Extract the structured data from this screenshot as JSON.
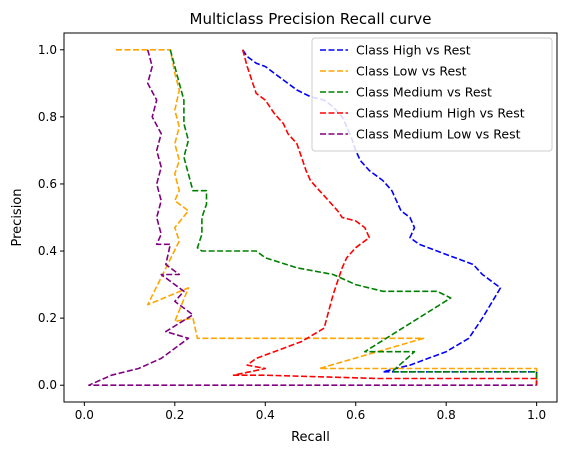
{
  "chart_data": {
    "type": "line",
    "title": "Multiclass Precision Recall curve",
    "xlabel": "Recall",
    "ylabel": "Precision",
    "xlim": [
      -0.045,
      1.045
    ],
    "ylim": [
      -0.05,
      1.05
    ],
    "xticks": [
      "0.0",
      "0.2",
      "0.4",
      "0.6",
      "0.8",
      "1.0"
    ],
    "yticks": [
      "0.0",
      "0.2",
      "0.4",
      "0.6",
      "0.8",
      "1.0"
    ],
    "xtick_values": [
      0,
      0.2,
      0.4,
      0.6,
      0.8,
      1.0
    ],
    "ytick_values": [
      0,
      0.2,
      0.4,
      0.6,
      0.8,
      1.0
    ],
    "legend_position": "top-right",
    "grid": false,
    "series": [
      {
        "name": "Class High vs Rest",
        "color": "#0000ff",
        "points": [
          [
            0.35,
            1.0
          ],
          [
            0.36,
            0.98
          ],
          [
            0.38,
            0.96
          ],
          [
            0.4,
            0.95
          ],
          [
            0.42,
            0.93
          ],
          [
            0.44,
            0.91
          ],
          [
            0.47,
            0.88
          ],
          [
            0.5,
            0.86
          ],
          [
            0.53,
            0.85
          ],
          [
            0.55,
            0.83
          ],
          [
            0.57,
            0.8
          ],
          [
            0.58,
            0.77
          ],
          [
            0.59,
            0.74
          ],
          [
            0.6,
            0.7
          ],
          [
            0.61,
            0.67
          ],
          [
            0.63,
            0.64
          ],
          [
            0.66,
            0.61
          ],
          [
            0.68,
            0.58
          ],
          [
            0.69,
            0.55
          ],
          [
            0.7,
            0.52
          ],
          [
            0.72,
            0.5
          ],
          [
            0.73,
            0.47
          ],
          [
            0.72,
            0.44
          ],
          [
            0.74,
            0.42
          ],
          [
            0.78,
            0.4
          ],
          [
            0.82,
            0.38
          ],
          [
            0.86,
            0.36
          ],
          [
            0.88,
            0.33
          ],
          [
            0.9,
            0.31
          ],
          [
            0.92,
            0.29
          ],
          [
            0.88,
            0.2
          ],
          [
            0.85,
            0.14
          ],
          [
            0.8,
            0.1
          ],
          [
            0.72,
            0.06
          ],
          [
            0.66,
            0.04
          ],
          [
            1.0,
            0.04
          ],
          [
            1.0,
            0.0
          ]
        ]
      },
      {
        "name": "Class Low vs Rest",
        "color": "#ffa500",
        "points": [
          [
            0.07,
            1.0
          ],
          [
            0.19,
            1.0
          ],
          [
            0.2,
            0.93
          ],
          [
            0.21,
            0.88
          ],
          [
            0.2,
            0.82
          ],
          [
            0.21,
            0.77
          ],
          [
            0.2,
            0.72
          ],
          [
            0.21,
            0.67
          ],
          [
            0.2,
            0.63
          ],
          [
            0.21,
            0.58
          ],
          [
            0.2,
            0.55
          ],
          [
            0.23,
            0.52
          ],
          [
            0.2,
            0.47
          ],
          [
            0.21,
            0.43
          ],
          [
            0.14,
            0.24
          ],
          [
            0.23,
            0.29
          ],
          [
            0.2,
            0.19
          ],
          [
            0.24,
            0.2
          ],
          [
            0.25,
            0.14
          ],
          [
            0.75,
            0.14
          ],
          [
            0.52,
            0.05
          ],
          [
            1.0,
            0.05
          ],
          [
            1.0,
            0.0
          ]
        ]
      },
      {
        "name": "Class Medium vs Rest",
        "color": "#008000",
        "points": [
          [
            0.19,
            1.0
          ],
          [
            0.2,
            0.95
          ],
          [
            0.21,
            0.9
          ],
          [
            0.22,
            0.85
          ],
          [
            0.22,
            0.78
          ],
          [
            0.23,
            0.73
          ],
          [
            0.22,
            0.68
          ],
          [
            0.23,
            0.63
          ],
          [
            0.24,
            0.58
          ],
          [
            0.27,
            0.58
          ],
          [
            0.27,
            0.54
          ],
          [
            0.26,
            0.5
          ],
          [
            0.26,
            0.45
          ],
          [
            0.25,
            0.41
          ],
          [
            0.26,
            0.4
          ],
          [
            0.38,
            0.4
          ],
          [
            0.4,
            0.38
          ],
          [
            0.47,
            0.35
          ],
          [
            0.55,
            0.33
          ],
          [
            0.6,
            0.3
          ],
          [
            0.66,
            0.28
          ],
          [
            0.78,
            0.28
          ],
          [
            0.81,
            0.26
          ],
          [
            0.62,
            0.1
          ],
          [
            0.73,
            0.1
          ],
          [
            0.68,
            0.04
          ],
          [
            1.0,
            0.04
          ],
          [
            1.0,
            0.0
          ]
        ]
      },
      {
        "name": "Class Medium High vs Rest",
        "color": "#ff0000",
        "points": [
          [
            0.35,
            1.0
          ],
          [
            0.36,
            0.95
          ],
          [
            0.37,
            0.91
          ],
          [
            0.38,
            0.87
          ],
          [
            0.4,
            0.85
          ],
          [
            0.42,
            0.81
          ],
          [
            0.44,
            0.78
          ],
          [
            0.45,
            0.75
          ],
          [
            0.47,
            0.72
          ],
          [
            0.48,
            0.68
          ],
          [
            0.49,
            0.64
          ],
          [
            0.5,
            0.61
          ],
          [
            0.52,
            0.58
          ],
          [
            0.54,
            0.55
          ],
          [
            0.56,
            0.52
          ],
          [
            0.57,
            0.5
          ],
          [
            0.6,
            0.49
          ],
          [
            0.62,
            0.47
          ],
          [
            0.63,
            0.44
          ],
          [
            0.6,
            0.41
          ],
          [
            0.58,
            0.38
          ],
          [
            0.57,
            0.35
          ],
          [
            0.56,
            0.31
          ],
          [
            0.55,
            0.27
          ],
          [
            0.54,
            0.22
          ],
          [
            0.53,
            0.17
          ],
          [
            0.48,
            0.13
          ],
          [
            0.42,
            0.1
          ],
          [
            0.38,
            0.08
          ],
          [
            0.36,
            0.06
          ],
          [
            0.4,
            0.05
          ],
          [
            0.33,
            0.03
          ],
          [
            0.4,
            0.03
          ],
          [
            0.65,
            0.02
          ],
          [
            1.0,
            0.02
          ],
          [
            1.0,
            0.0
          ]
        ]
      },
      {
        "name": "Class Medium Low vs Rest",
        "color": "#800080",
        "points": [
          [
            0.14,
            1.0
          ],
          [
            0.15,
            0.95
          ],
          [
            0.14,
            0.9
          ],
          [
            0.16,
            0.85
          ],
          [
            0.15,
            0.8
          ],
          [
            0.17,
            0.75
          ],
          [
            0.16,
            0.7
          ],
          [
            0.17,
            0.65
          ],
          [
            0.16,
            0.6
          ],
          [
            0.17,
            0.55
          ],
          [
            0.16,
            0.5
          ],
          [
            0.17,
            0.45
          ],
          [
            0.16,
            0.42
          ],
          [
            0.19,
            0.42
          ],
          [
            0.18,
            0.36
          ],
          [
            0.21,
            0.33
          ],
          [
            0.17,
            0.33
          ],
          [
            0.22,
            0.28
          ],
          [
            0.2,
            0.25
          ],
          [
            0.24,
            0.21
          ],
          [
            0.18,
            0.16
          ],
          [
            0.23,
            0.14
          ],
          [
            0.17,
            0.08
          ],
          [
            0.12,
            0.05
          ],
          [
            0.06,
            0.03
          ],
          [
            0.01,
            0.0
          ],
          [
            1.0,
            0.0
          ]
        ]
      }
    ]
  }
}
